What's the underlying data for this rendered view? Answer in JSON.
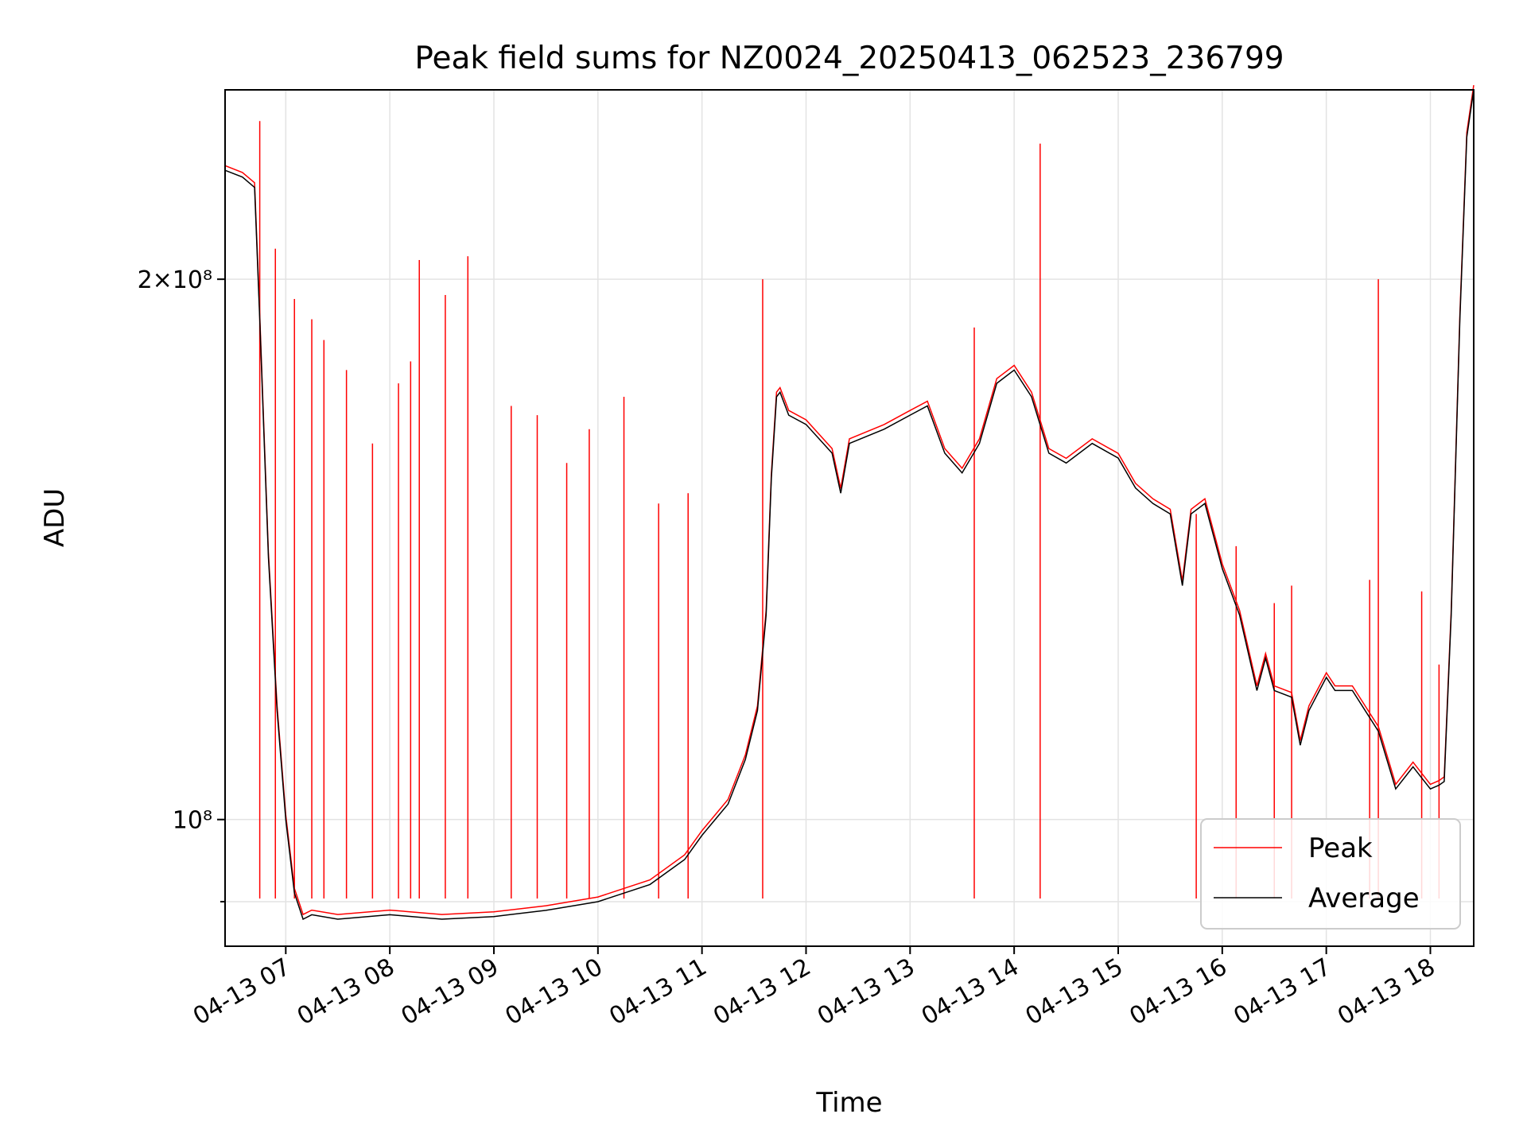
{
  "chart_data": {
    "type": "line",
    "title": "Peak field sums for NZ0024_20250413_062523_236799",
    "xlabel": "Time",
    "ylabel": "ADU",
    "y_scale": "log",
    "xlim": [
      "2025-04-13 06:25",
      "2025-04-13 18:25"
    ],
    "ylim": [
      85000000,
      255000000
    ],
    "grid": true,
    "legend_position": "lower-right",
    "x_ticks": [
      {
        "time": "2025-04-13 07:00",
        "label": "04-13 07"
      },
      {
        "time": "2025-04-13 08:00",
        "label": "04-13 08"
      },
      {
        "time": "2025-04-13 09:00",
        "label": "04-13 09"
      },
      {
        "time": "2025-04-13 10:00",
        "label": "04-13 10"
      },
      {
        "time": "2025-04-13 11:00",
        "label": "04-13 11"
      },
      {
        "time": "2025-04-13 12:00",
        "label": "04-13 12"
      },
      {
        "time": "2025-04-13 13:00",
        "label": "04-13 13"
      },
      {
        "time": "2025-04-13 14:00",
        "label": "04-13 14"
      },
      {
        "time": "2025-04-13 15:00",
        "label": "04-13 15"
      },
      {
        "time": "2025-04-13 16:00",
        "label": "04-13 16"
      },
      {
        "time": "2025-04-13 17:00",
        "label": "04-13 17"
      },
      {
        "time": "2025-04-13 18:00",
        "label": "04-13 18"
      }
    ],
    "y_ticks": [
      {
        "value": 200000000,
        "label": "2×10⁸",
        "major": true
      },
      {
        "value": 100000000,
        "label": "10⁸",
        "major": true
      },
      {
        "value": 90000000,
        "label": "",
        "major": false
      }
    ],
    "series": [
      {
        "name": "Average",
        "color": "#000000",
        "points": [
          [
            "2025-04-13 06:25",
            230000000
          ],
          [
            "2025-04-13 06:35",
            228000000
          ],
          [
            "2025-04-13 06:42",
            225000000
          ],
          [
            "2025-04-13 06:45",
            190000000
          ],
          [
            "2025-04-13 06:50",
            140000000
          ],
          [
            "2025-04-13 06:55",
            115000000
          ],
          [
            "2025-04-13 07:00",
            100000000
          ],
          [
            "2025-04-13 07:05",
            91000000
          ],
          [
            "2025-04-13 07:10",
            88000000
          ],
          [
            "2025-04-13 07:15",
            88500000
          ],
          [
            "2025-04-13 07:30",
            88000000
          ],
          [
            "2025-04-13 08:00",
            88500000
          ],
          [
            "2025-04-13 08:30",
            88000000
          ],
          [
            "2025-04-13 09:00",
            88300000
          ],
          [
            "2025-04-13 09:30",
            89000000
          ],
          [
            "2025-04-13 10:00",
            90000000
          ],
          [
            "2025-04-13 10:30",
            92000000
          ],
          [
            "2025-04-13 10:50",
            95000000
          ],
          [
            "2025-04-13 11:00",
            98000000
          ],
          [
            "2025-04-13 11:15",
            102000000
          ],
          [
            "2025-04-13 11:25",
            108000000
          ],
          [
            "2025-04-13 11:32",
            115000000
          ],
          [
            "2025-04-13 11:37",
            130000000
          ],
          [
            "2025-04-13 11:40",
            155000000
          ],
          [
            "2025-04-13 11:43",
            172000000
          ],
          [
            "2025-04-13 11:45",
            173000000
          ],
          [
            "2025-04-13 11:50",
            168000000
          ],
          [
            "2025-04-13 12:00",
            166000000
          ],
          [
            "2025-04-13 12:15",
            160000000
          ],
          [
            "2025-04-13 12:20",
            152000000
          ],
          [
            "2025-04-13 12:25",
            162000000
          ],
          [
            "2025-04-13 12:45",
            165000000
          ],
          [
            "2025-04-13 13:00",
            168000000
          ],
          [
            "2025-04-13 13:10",
            170000000
          ],
          [
            "2025-04-13 13:20",
            160000000
          ],
          [
            "2025-04-13 13:30",
            156000000
          ],
          [
            "2025-04-13 13:40",
            162000000
          ],
          [
            "2025-04-13 13:50",
            175000000
          ],
          [
            "2025-04-13 14:00",
            178000000
          ],
          [
            "2025-04-13 14:10",
            172000000
          ],
          [
            "2025-04-13 14:20",
            160000000
          ],
          [
            "2025-04-13 14:30",
            158000000
          ],
          [
            "2025-04-13 14:45",
            162000000
          ],
          [
            "2025-04-13 15:00",
            159000000
          ],
          [
            "2025-04-13 15:10",
            153000000
          ],
          [
            "2025-04-13 15:20",
            150000000
          ],
          [
            "2025-04-13 15:30",
            148000000
          ],
          [
            "2025-04-13 15:37",
            135000000
          ],
          [
            "2025-04-13 15:42",
            148000000
          ],
          [
            "2025-04-13 15:50",
            150000000
          ],
          [
            "2025-04-13 16:00",
            138000000
          ],
          [
            "2025-04-13 16:10",
            130000000
          ],
          [
            "2025-04-13 16:20",
            118000000
          ],
          [
            "2025-04-13 16:25",
            123000000
          ],
          [
            "2025-04-13 16:30",
            118000000
          ],
          [
            "2025-04-13 16:40",
            117000000
          ],
          [
            "2025-04-13 16:45",
            110000000
          ],
          [
            "2025-04-13 16:50",
            115000000
          ],
          [
            "2025-04-13 17:00",
            120000000
          ],
          [
            "2025-04-13 17:05",
            118000000
          ],
          [
            "2025-04-13 17:15",
            118000000
          ],
          [
            "2025-04-13 17:30",
            112000000
          ],
          [
            "2025-04-13 17:40",
            104000000
          ],
          [
            "2025-04-13 17:50",
            107000000
          ],
          [
            "2025-04-13 18:00",
            104000000
          ],
          [
            "2025-04-13 18:05",
            104500000
          ],
          [
            "2025-04-13 18:08",
            105000000
          ],
          [
            "2025-04-13 18:12",
            130000000
          ],
          [
            "2025-04-13 18:17",
            190000000
          ],
          [
            "2025-04-13 18:21",
            240000000
          ],
          [
            "2025-04-13 18:25",
            255000000
          ]
        ]
      },
      {
        "name": "Peak",
        "color": "#ff0000",
        "spikes": [
          [
            "2025-04-13 06:45",
            245000000
          ],
          [
            "2025-04-13 06:54",
            208000000
          ],
          [
            "2025-04-13 07:05",
            195000000
          ],
          [
            "2025-04-13 07:15",
            190000000
          ],
          [
            "2025-04-13 07:22",
            185000000
          ],
          [
            "2025-04-13 07:35",
            178000000
          ],
          [
            "2025-04-13 07:50",
            162000000
          ],
          [
            "2025-04-13 08:05",
            175000000
          ],
          [
            "2025-04-13 08:12",
            180000000
          ],
          [
            "2025-04-13 08:17",
            205000000
          ],
          [
            "2025-04-13 08:32",
            196000000
          ],
          [
            "2025-04-13 08:45",
            206000000
          ],
          [
            "2025-04-13 09:10",
            170000000
          ],
          [
            "2025-04-13 09:25",
            168000000
          ],
          [
            "2025-04-13 09:42",
            158000000
          ],
          [
            "2025-04-13 09:55",
            165000000
          ],
          [
            "2025-04-13 10:15",
            172000000
          ],
          [
            "2025-04-13 10:35",
            150000000
          ],
          [
            "2025-04-13 10:52",
            152000000
          ],
          [
            "2025-04-13 11:35",
            200000000
          ],
          [
            "2025-04-13 13:37",
            188000000
          ],
          [
            "2025-04-13 14:15",
            238000000
          ],
          [
            "2025-04-13 15:45",
            148000000
          ],
          [
            "2025-04-13 16:08",
            142000000
          ],
          [
            "2025-04-13 16:30",
            132000000
          ],
          [
            "2025-04-13 16:40",
            135000000
          ],
          [
            "2025-04-13 17:25",
            136000000
          ],
          [
            "2025-04-13 17:30",
            200000000
          ],
          [
            "2025-04-13 17:55",
            134000000
          ],
          [
            "2025-04-13 18:05",
            122000000
          ]
        ]
      }
    ],
    "legend": [
      {
        "label": "Peak",
        "color": "#ff0000"
      },
      {
        "label": "Average",
        "color": "#000000"
      }
    ]
  }
}
